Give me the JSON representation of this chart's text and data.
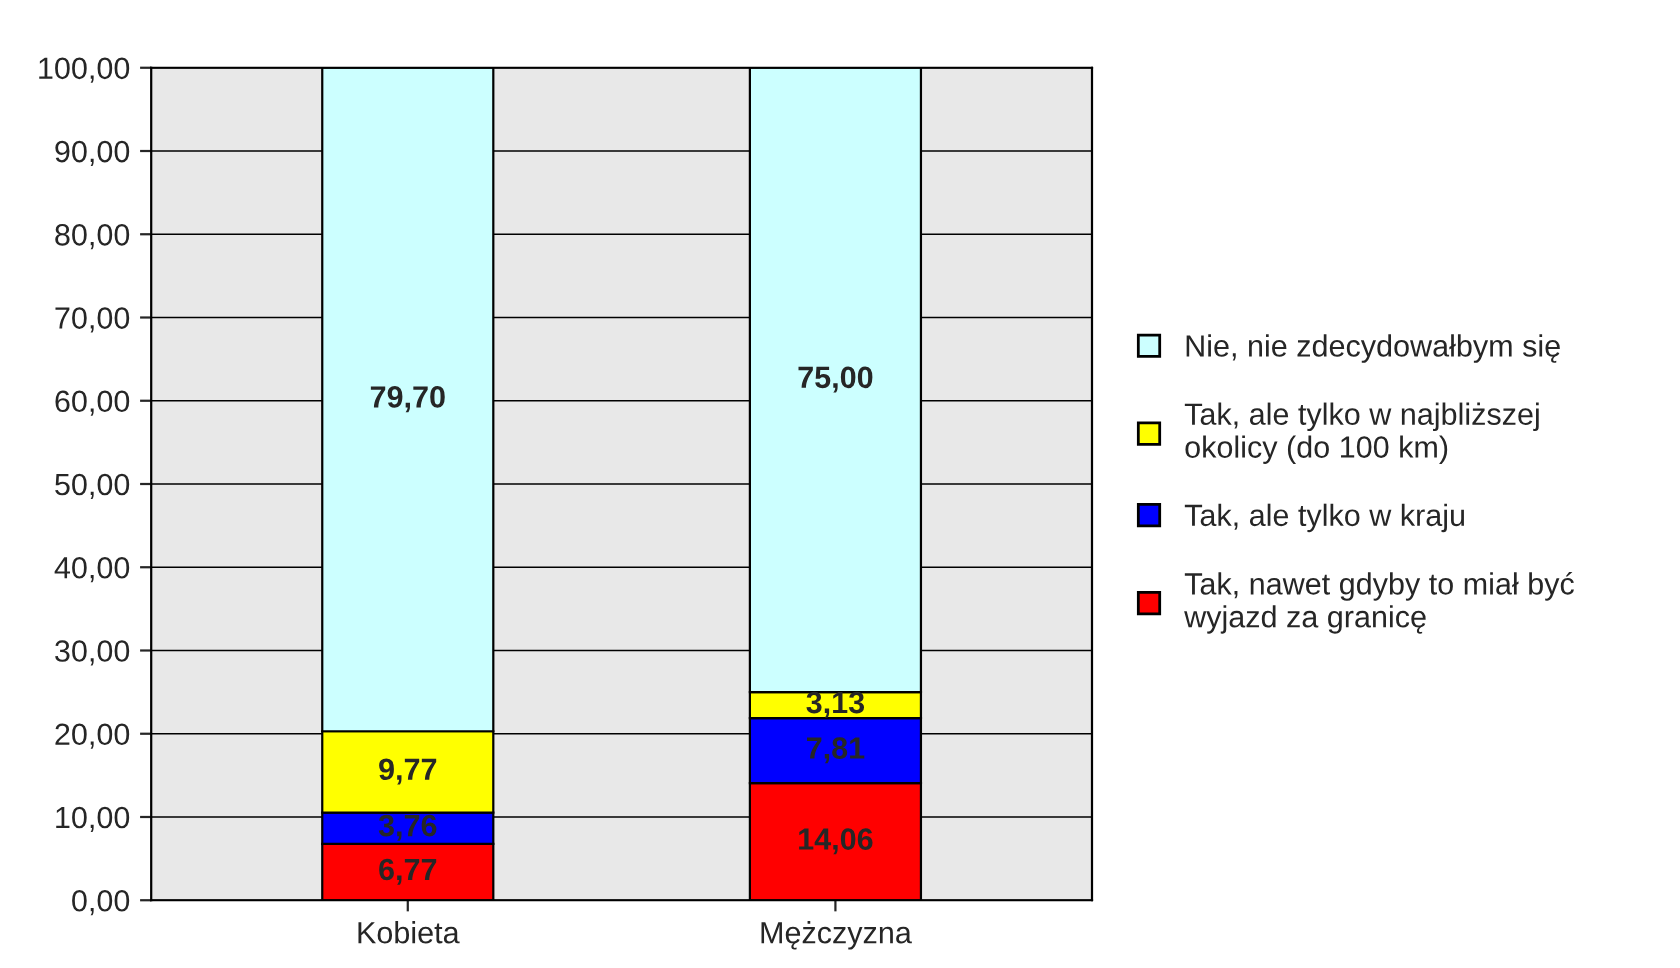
{
  "chart_data": {
    "type": "bar",
    "stacked": true,
    "categories": [
      "Kobieta",
      "Mężczyzna"
    ],
    "series": [
      {
        "name": "Tak, nawet gdyby to miał być\nwyjazd za granicę",
        "color": "#ff0000",
        "values": [
          6.77,
          14.06
        ],
        "value_labels": [
          "6,77",
          "14,06"
        ]
      },
      {
        "name": "Tak, ale tylko w kraju",
        "color": "#0000ff",
        "values": [
          3.76,
          7.81
        ],
        "value_labels": [
          "3,76",
          "7,81"
        ]
      },
      {
        "name": "Tak, ale tylko w najbliższej\nokolicy (do 100 km)",
        "color": "#ffff00",
        "values": [
          9.77,
          3.13
        ],
        "value_labels": [
          "9,77",
          "3,13"
        ]
      },
      {
        "name": "Nie, nie zdecydowałbym się",
        "color": "#ccffff",
        "values": [
          79.7,
          75.0
        ],
        "value_labels": [
          "79,70",
          "75,00"
        ]
      }
    ],
    "ylim": [
      0,
      100
    ],
    "yticks": [
      {
        "value": 0,
        "label": "0,00"
      },
      {
        "value": 10,
        "label": "10,00"
      },
      {
        "value": 20,
        "label": "20,00"
      },
      {
        "value": 30,
        "label": "30,00"
      },
      {
        "value": 40,
        "label": "40,00"
      },
      {
        "value": 50,
        "label": "50,00"
      },
      {
        "value": 60,
        "label": "60,00"
      },
      {
        "value": 70,
        "label": "70,00"
      },
      {
        "value": 80,
        "label": "80,00"
      },
      {
        "value": 90,
        "label": "90,00"
      },
      {
        "value": 100,
        "label": "100,00"
      }
    ],
    "grid": "y",
    "legend": "right"
  }
}
